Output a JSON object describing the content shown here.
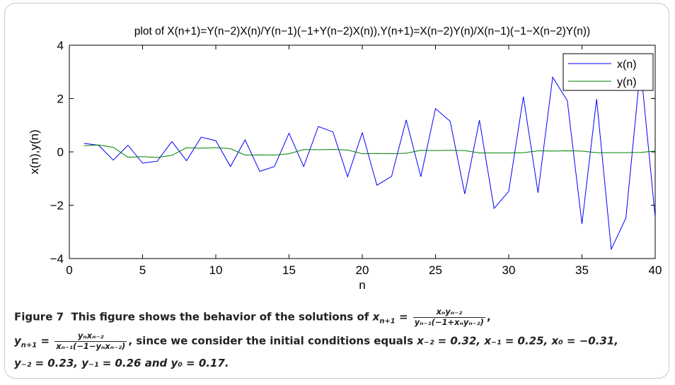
{
  "chart_data": {
    "type": "line",
    "title": "plot of X(n+1)=Y(n−2)X(n)/Y(n−1)(−1+Y(n−2)X(n)),Y(n+1)=X(n−2)Y(n)/X(n−1)(−1−X(n−2)Y(n))",
    "xlabel": "n",
    "ylabel": "x(n),y(n)",
    "xlim": [
      0,
      40
    ],
    "ylim": [
      -4,
      4
    ],
    "xticks": [
      0,
      5,
      10,
      15,
      20,
      25,
      30,
      35,
      40
    ],
    "xtick_labels": [
      "0",
      "5",
      "10",
      "15",
      "20",
      "25",
      "30",
      "35",
      "40"
    ],
    "yticks": [
      -4,
      -2,
      0,
      2,
      4
    ],
    "ytick_labels": [
      "−4",
      "−2",
      "0",
      "2",
      "4"
    ],
    "grid": false,
    "legend_position": "top-right",
    "x": [
      1,
      2,
      3,
      4,
      5,
      6,
      7,
      8,
      9,
      10,
      11,
      12,
      13,
      14,
      15,
      16,
      17,
      18,
      19,
      20,
      21,
      22,
      23,
      24,
      25,
      26,
      27,
      28,
      29,
      30,
      31,
      32,
      33,
      34,
      35,
      36,
      37,
      38,
      39,
      40
    ],
    "series": [
      {
        "name": "x(n)",
        "color": "#0000ff",
        "values": [
          0.32,
          0.25,
          -0.31,
          0.25,
          -0.42,
          -0.35,
          0.39,
          -0.33,
          0.55,
          0.42,
          -0.55,
          0.45,
          -0.73,
          -0.55,
          0.7,
          -0.55,
          0.95,
          0.75,
          -0.93,
          0.72,
          -1.25,
          -0.92,
          1.2,
          -0.93,
          1.62,
          1.15,
          -1.58,
          1.19,
          -2.12,
          -1.48,
          2.07,
          -1.53,
          2.8,
          1.92,
          -2.7,
          1.98,
          -3.65,
          -2.48,
          3.2,
          -2.45
        ]
      },
      {
        "name": "y(n)",
        "color": "#008000",
        "values": [
          0.23,
          0.26,
          0.17,
          -0.2,
          -0.18,
          -0.21,
          -0.13,
          0.16,
          0.14,
          0.16,
          0.12,
          -0.12,
          -0.11,
          -0.12,
          -0.07,
          0.09,
          0.08,
          0.09,
          0.07,
          -0.07,
          -0.06,
          -0.07,
          -0.05,
          0.06,
          0.05,
          0.06,
          0.05,
          -0.04,
          -0.04,
          -0.04,
          -0.03,
          0.04,
          0.03,
          0.04,
          0.03,
          -0.03,
          -0.03,
          -0.03,
          -0.02,
          0.03
        ]
      }
    ]
  },
  "caption": {
    "figure_label": "Figure 7",
    "text_intro": "This figure shows the behavior of the solutions of",
    "eq1_lhs": "x",
    "eq1_lhs_sub": "n+1",
    "eq1_num": "xₙyₙ₋₂",
    "eq1_den": "yₙ₋₁(−1+xₙyₙ₋₂)",
    "eq2_lhs": "y",
    "eq2_lhs_sub": "n+1",
    "eq2_num": "yₙxₙ₋₂",
    "eq2_den": "xₙ₋₁(−1−yₙxₙ₋₂)",
    "text_mid": ", since we consider the initial conditions equals",
    "cond_x": "x₋₂ = 0.32, x₋₁ = 0.25, x₀ = −0.31,",
    "cond_y": "y₋₂ = 0.23, y₋₁ = 0.26 and y₀ = 0.17."
  }
}
